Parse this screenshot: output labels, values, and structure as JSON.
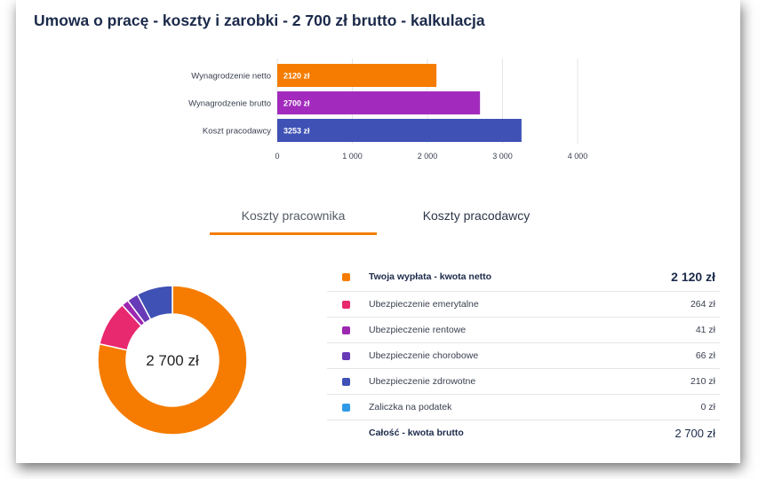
{
  "title": "Umowa o pracę - koszty i zarobki - 2 700 zł brutto - kalkulacja",
  "chart_data": [
    {
      "type": "bar",
      "orientation": "horizontal",
      "categories": [
        "Wynagrodzenie netto",
        "Wynagrodzenie brutto",
        "Koszt pracodawcy"
      ],
      "values": [
        2120,
        2700,
        3253
      ],
      "value_labels": [
        "2120 zł",
        "2700 zł",
        "3253 zł"
      ],
      "colors": [
        "#f57c00",
        "#a22bbd",
        "#3f51b5"
      ],
      "xlim": [
        0,
        4000
      ],
      "xticks": [
        0,
        1000,
        2000,
        3000,
        4000
      ],
      "xtick_labels": [
        "0",
        "1 000",
        "2 000",
        "3 000",
        "4 000"
      ],
      "grid": true
    },
    {
      "type": "pie",
      "donut": true,
      "center_label": "2 700 zł",
      "slices": [
        {
          "label": "Twoja wypłata - kwota netto",
          "value": 2120,
          "color": "#f57c00"
        },
        {
          "label": "Ubezpieczenie emerytalne",
          "value": 264,
          "color": "#e8286f"
        },
        {
          "label": "Ubezpieczenie rentowe",
          "value": 41,
          "color": "#9c27b0"
        },
        {
          "label": "Ubezpieczenie chorobowe",
          "value": 66,
          "color": "#673ab7"
        },
        {
          "label": "Ubezpieczenie zdrowotne",
          "value": 210,
          "color": "#3f51b5"
        },
        {
          "label": "Zaliczka na podatek",
          "value": 0,
          "color": "#2f9be8"
        }
      ]
    }
  ],
  "tabs": {
    "employee": "Koszty pracownika",
    "employer": "Koszty pracodawcy"
  },
  "legend": [
    {
      "label": "Twoja wypłata - kwota netto",
      "value": "2 120 zł",
      "color": "#f57c00"
    },
    {
      "label": "Ubezpieczenie emerytalne",
      "value": "264 zł",
      "color": "#e8286f"
    },
    {
      "label": "Ubezpieczenie rentowe",
      "value": "41 zł",
      "color": "#9c27b0"
    },
    {
      "label": "Ubezpieczenie chorobowe",
      "value": "66 zł",
      "color": "#673ab7"
    },
    {
      "label": "Ubezpieczenie zdrowotne",
      "value": "210 zł",
      "color": "#3f51b5"
    },
    {
      "label": "Zaliczka na podatek",
      "value": "0 zł",
      "color": "#2f9be8"
    }
  ],
  "total": {
    "label": "Całość - kwota brutto",
    "value": "2 700 zł"
  }
}
